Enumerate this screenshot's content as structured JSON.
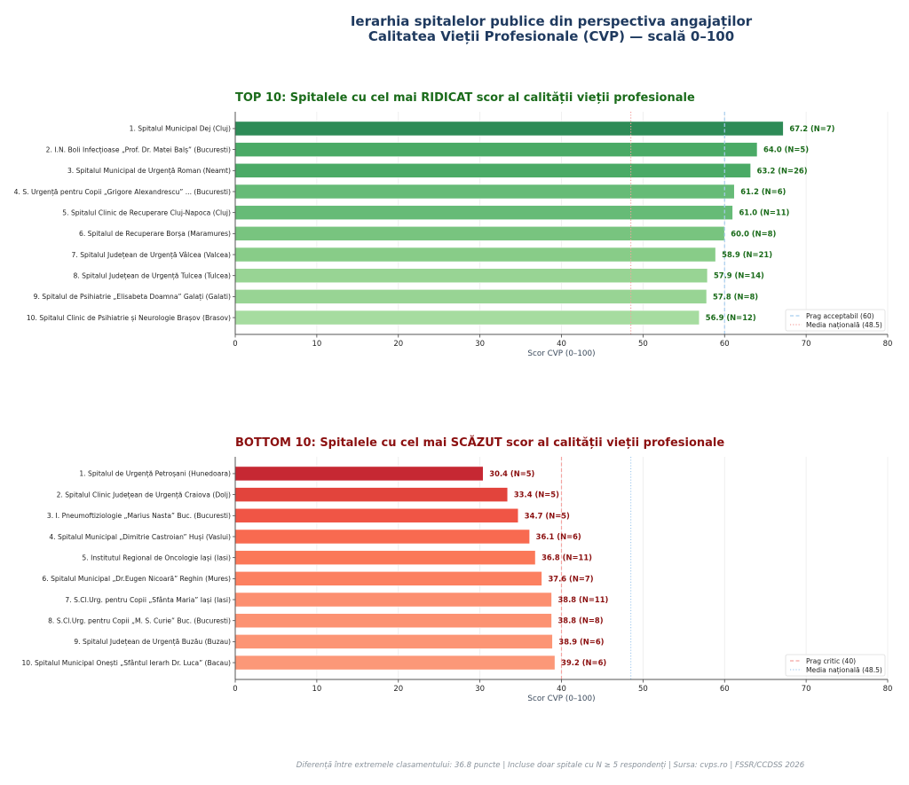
{
  "title_line1": "Ierarhia spitalelor publice din perspectiva angajaților",
  "title_line2": "Calitatea Vieții Profesionale (CVP) — scală 0–100",
  "footer": "Diferență între extremele clasamentului: 36.8 puncte  |  Incluse doar spitale cu N ≥ 5 respondenți  |  Sursa: cvps.ro  |  FSSR/CCDSS 2026",
  "chart_data": [
    {
      "type": "bar",
      "orientation": "horizontal",
      "title": "TOP 10: Spitalele cu cel mai RIDICAT scor al calității vieții profesionale",
      "title_color": "#1a6b1a",
      "label_color": "#1a6b1a",
      "xlabel": "Scor CVP (0–100)",
      "ylabel": "",
      "xlim": [
        0,
        80
      ],
      "xticks": [
        0,
        10,
        20,
        30,
        40,
        50,
        60,
        70,
        80
      ],
      "grid": "x",
      "categories": [
        "1.  Spitalul Municipal Dej (Cluj)",
        "2.  I.N. Boli Infecțioase „Prof. Dr. Matei Balș” (Bucuresti)",
        "3.  Spitalul Municipal de Urgență Roman (Neamt)",
        "4.  S. Urgență pentru Copii „Grigore Alexandrescu” ... (Bucuresti)",
        "5.  Spitalul Clinic de Recuperare Cluj-Napoca (Cluj)",
        "6.  Spitalul de Recuperare Borșa (Maramures)",
        "7.  Spitalul Județean de Urgență Vâlcea (Valcea)",
        "8.  Spitalul Județean de Urgență Tulcea (Tulcea)",
        "9.  Spitalul de Psihiatrie „Elisabeta Doamna” Galați (Galati)",
        "10.  Spitalul Clinic de Psihiatrie și Neurologie Brașov (Brasov)"
      ],
      "values": [
        67.2,
        64.0,
        63.2,
        61.2,
        61.0,
        60.0,
        58.9,
        57.9,
        57.8,
        56.9
      ],
      "n": [
        7,
        5,
        26,
        6,
        11,
        8,
        21,
        14,
        8,
        12
      ],
      "value_labels": [
        "67.2  (N=7)",
        "64.0  (N=5)",
        "63.2  (N=26)",
        "61.2  (N=6)",
        "61.0  (N=11)",
        "60.0  (N=8)",
        "58.9  (N=21)",
        "57.9  (N=14)",
        "57.8  (N=8)",
        "56.9  (N=12)"
      ],
      "colors": [
        "#2e8b57",
        "#4aaa66",
        "#4aaa66",
        "#66bb77",
        "#66bb77",
        "#78c47f",
        "#88cc88",
        "#98d494",
        "#98d494",
        "#a6dca0"
      ],
      "reference_lines": [
        {
          "label": "Prag acceptabil (60)",
          "value": 60,
          "style": "dashed",
          "color": "#a8cdef"
        },
        {
          "label": "Media națională (48.5)",
          "value": 48.5,
          "style": "dotted",
          "color": "#f4a3a0"
        }
      ],
      "legend_position": "lower-right"
    },
    {
      "type": "bar",
      "orientation": "horizontal",
      "title": "BOTTOM 10: Spitalele cu cel mai SCĂZUT scor al calității vieții profesionale",
      "title_color": "#8b1010",
      "label_color": "#8b1010",
      "xlabel": "Scor CVP (0–100)",
      "ylabel": "",
      "xlim": [
        0,
        80
      ],
      "xticks": [
        0,
        10,
        20,
        30,
        40,
        50,
        60,
        70,
        80
      ],
      "grid": "x",
      "categories": [
        "1.  Spitalul de Urgență Petroșani (Hunedoara)",
        "2.  Spitalul Clinic Județean de Urgență Craiova (Dolj)",
        "3.  I. Pneumoftiziologie „Marius Nasta” Buc. (Bucuresti)",
        "4.  Spitalul Municipal „Dimitrie Castroian” Huși (Vaslui)",
        "5.  Institutul Regional de Oncologie Iași (Iasi)",
        "6.  Spitalul Municipal „Dr.Eugen Nicoară” Reghin (Mures)",
        "7.  S.Cl.Urg. pentru Copii „Sfânta Maria” Iași (Iasi)",
        "8.  S.Cl.Urg. pentru Copii „M. S. Curie” Buc. (Bucuresti)",
        "9.  Spitalul Județean de Urgență Buzău (Buzau)",
        "10.  Spitalul Municipal Onești „Sfântul Ierarh Dr. Luca” (Bacau)"
      ],
      "values": [
        30.4,
        33.4,
        34.7,
        36.1,
        36.8,
        37.6,
        38.8,
        38.8,
        38.9,
        39.2
      ],
      "n": [
        5,
        5,
        5,
        6,
        11,
        7,
        11,
        8,
        6,
        6
      ],
      "value_labels": [
        "30.4  (N=5)",
        "33.4  (N=5)",
        "34.7  (N=5)",
        "36.1  (N=6)",
        "36.8  (N=11)",
        "37.6  (N=7)",
        "38.8  (N=11)",
        "38.8  (N=8)",
        "38.9  (N=6)",
        "39.2  (N=6)"
      ],
      "colors": [
        "#c62833",
        "#e2443c",
        "#f05545",
        "#f86a50",
        "#fb7858",
        "#fc8060",
        "#fc8f70",
        "#fc9272",
        "#fc9575",
        "#fc9878"
      ],
      "reference_lines": [
        {
          "label": "Prag critic (40)",
          "value": 40,
          "style": "dashed",
          "color": "#f4a3a0"
        },
        {
          "label": "Media națională (48.5)",
          "value": 48.5,
          "style": "dotted",
          "color": "#a8cdef"
        }
      ],
      "legend_position": "lower-right"
    }
  ]
}
